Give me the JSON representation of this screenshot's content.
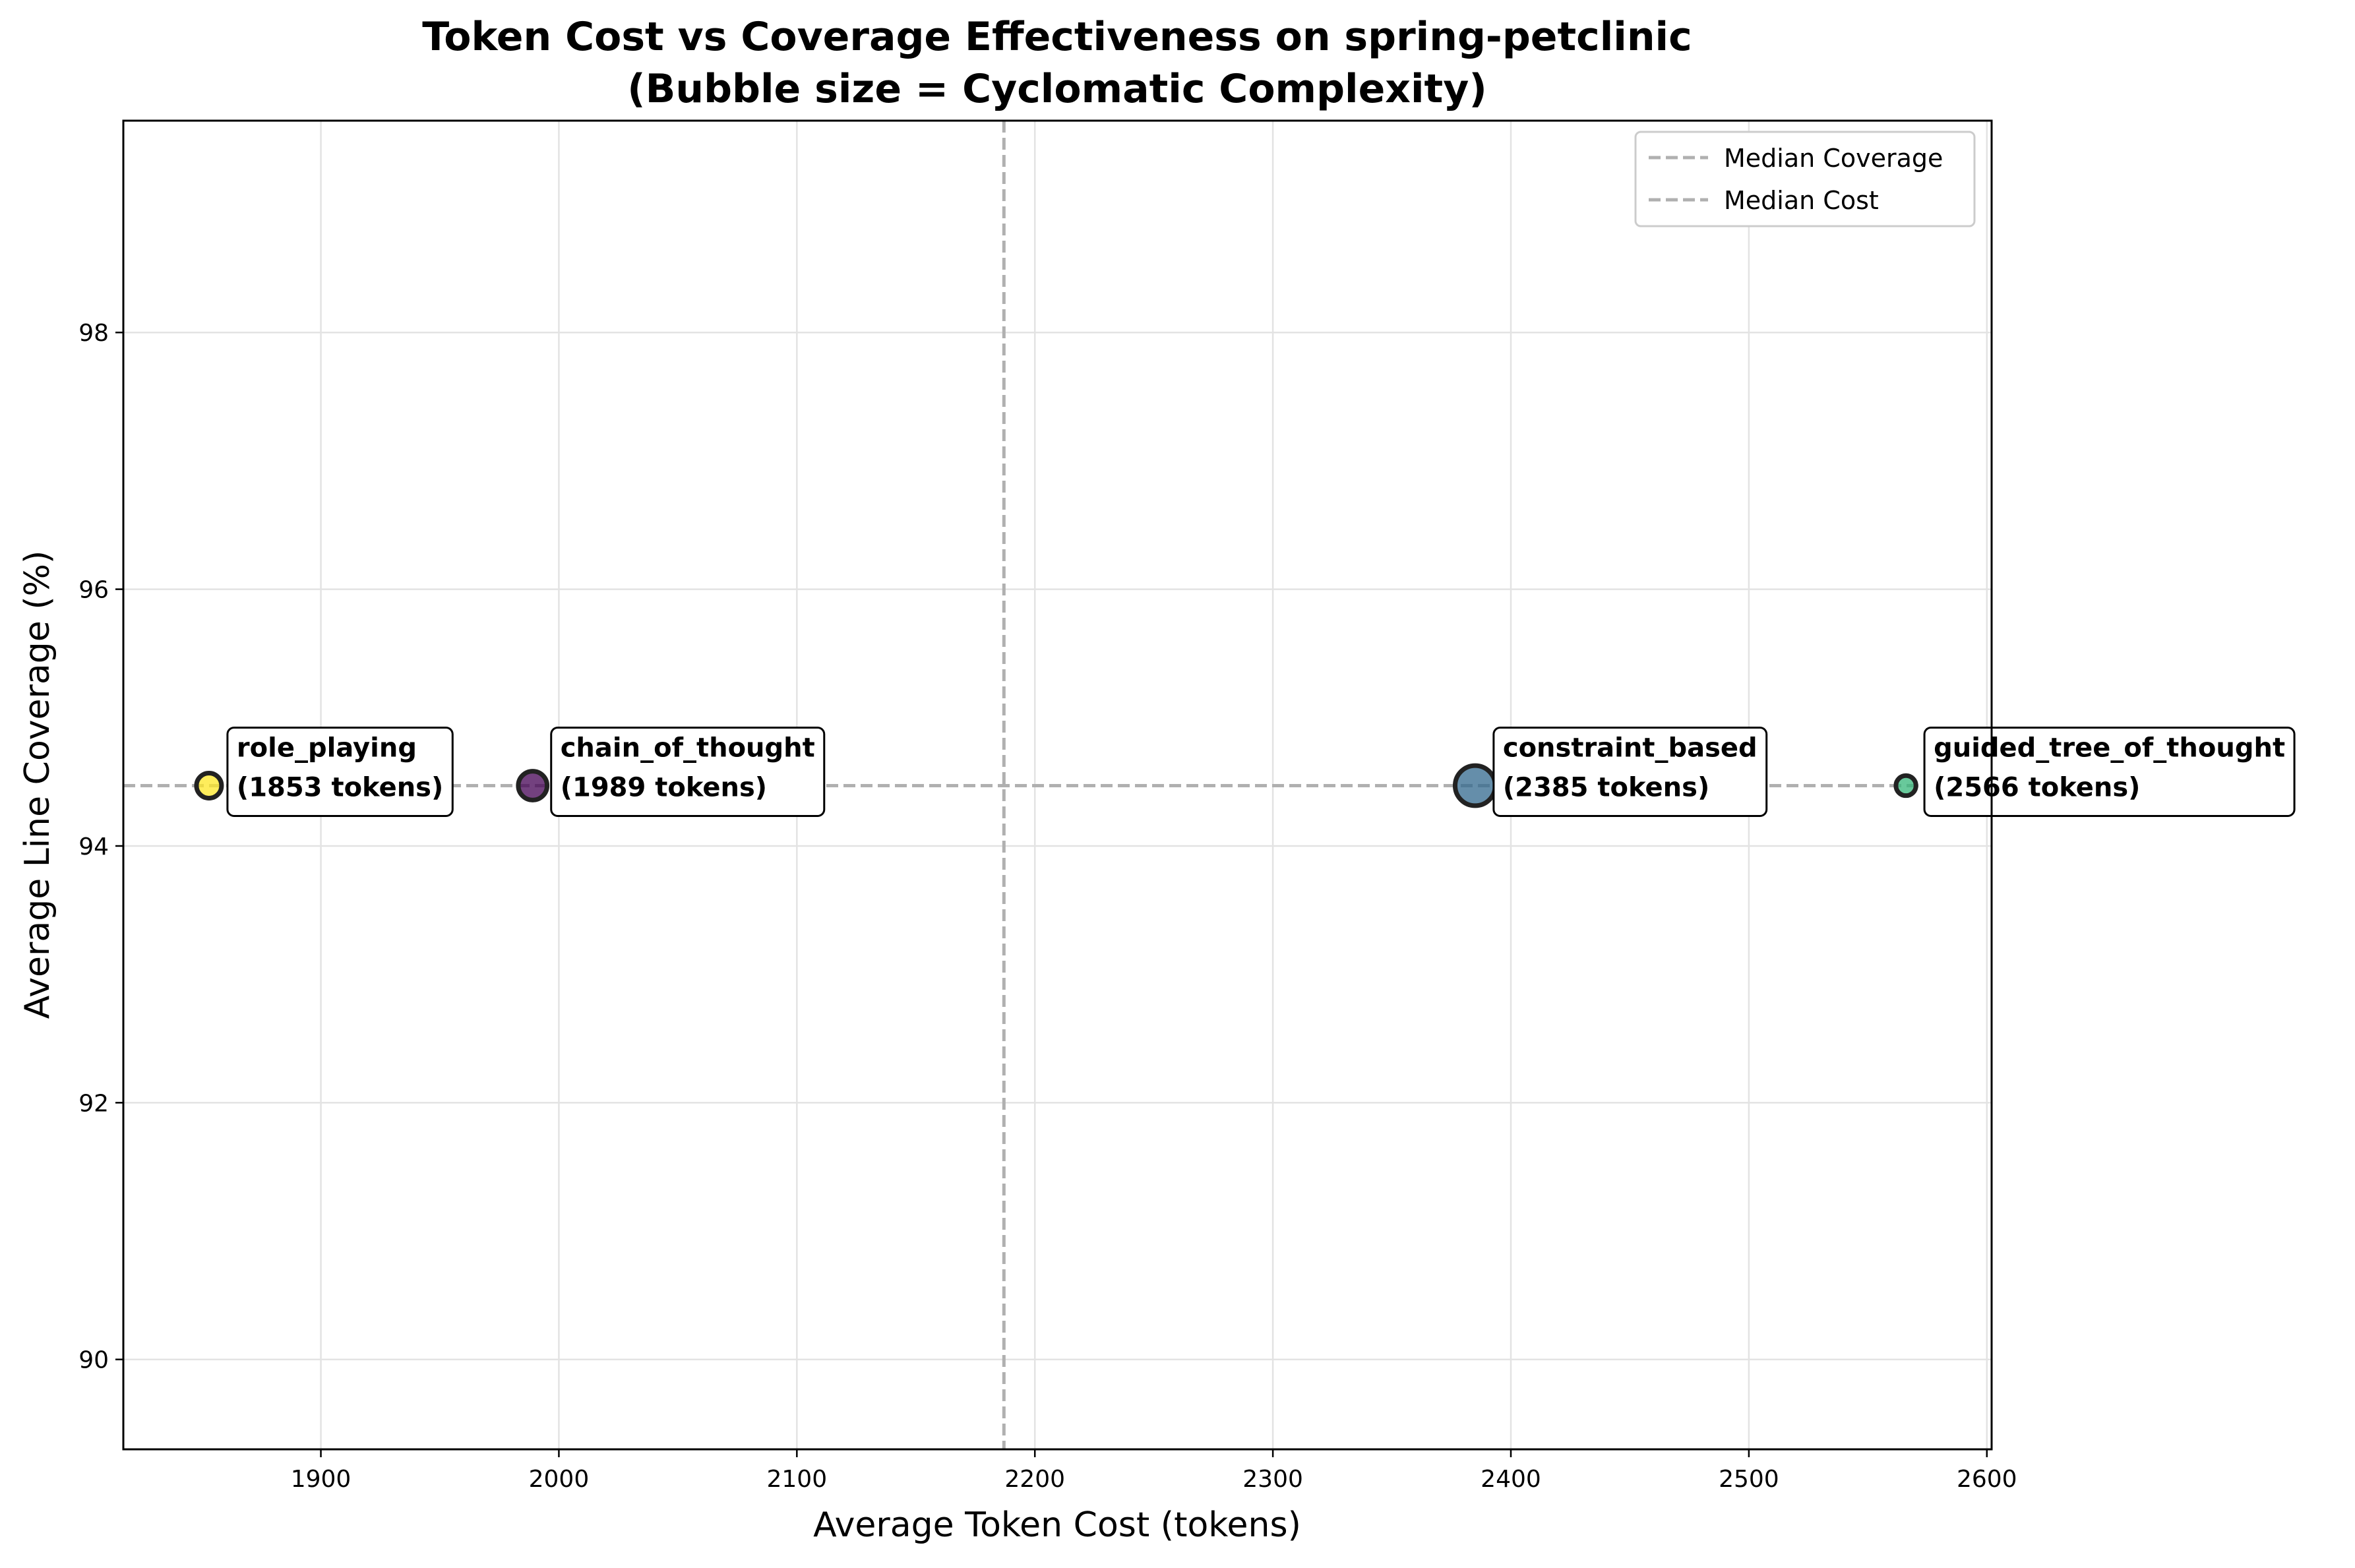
{
  "chart_data": {
    "type": "scatter",
    "title": "Token Cost vs Coverage Effectiveness on spring-petclinic",
    "subtitle": "(Bubble size = Cyclomatic Complexity)",
    "xlabel": "Average Token Cost (tokens)",
    "ylabel": "Average Line Coverage (%)",
    "xlim": [
      1817,
      2602
    ],
    "ylim": [
      89.3,
      99.65
    ],
    "xticks": [
      1900,
      2000,
      2100,
      2200,
      2300,
      2400,
      2500,
      2600
    ],
    "yticks": [
      90,
      92,
      94,
      96,
      98
    ],
    "grid": true,
    "legend_position": "top-right",
    "legend": [
      "Median Coverage",
      "Median Cost"
    ],
    "median_coverage": 94.47,
    "median_cost": 2187,
    "points": [
      {
        "name": "role_playing",
        "x": 1853,
        "y": 94.47,
        "label": "role_playing",
        "sublabel": "(1853 tokens)",
        "color": "#fde725",
        "size": 1.0
      },
      {
        "name": "chain_of_thought",
        "x": 1989,
        "y": 94.47,
        "label": "chain_of_thought",
        "sublabel": "(1989 tokens)",
        "color": "#440154",
        "size": 1.15
      },
      {
        "name": "constraint_based",
        "x": 2385,
        "y": 94.47,
        "label": "constraint_based",
        "sublabel": "(2385 tokens)",
        "color": "#31688e",
        "size": 1.6
      },
      {
        "name": "guided_tree_of_thought",
        "x": 2566,
        "y": 94.47,
        "label": "guided_tree_of_thought",
        "sublabel": "(2566 tokens)",
        "color": "#35b779",
        "size": 0.8
      }
    ]
  }
}
